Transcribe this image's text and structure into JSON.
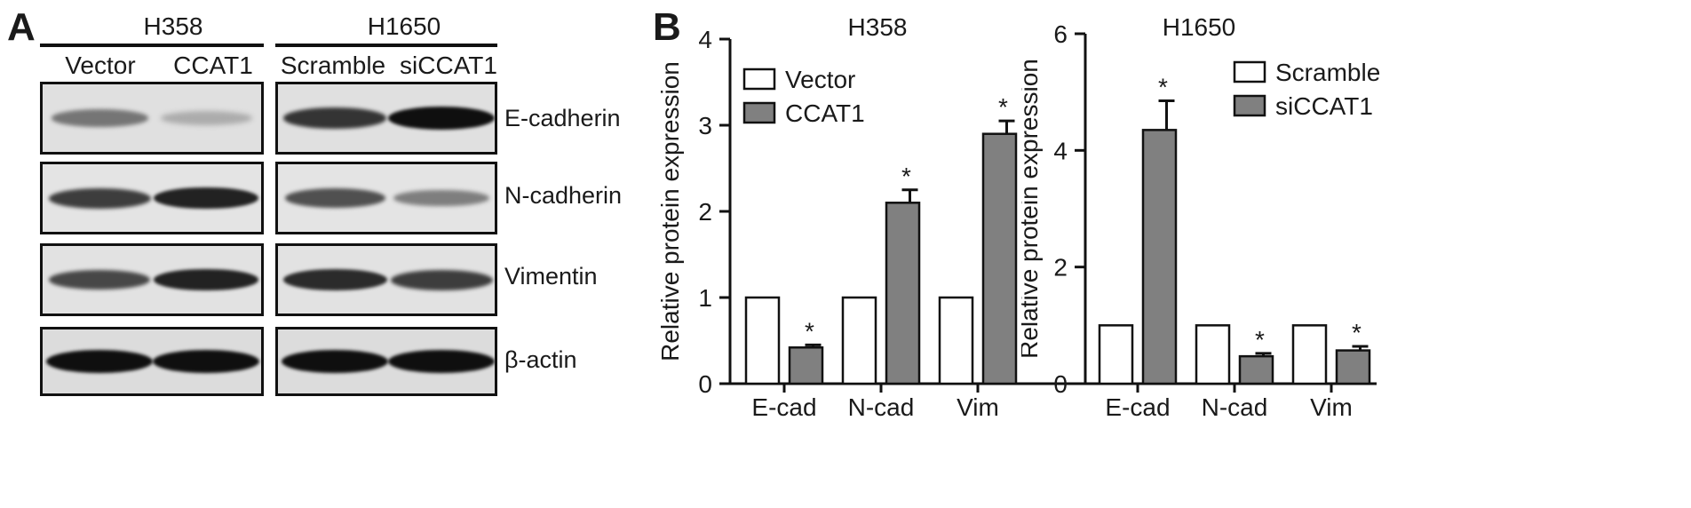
{
  "panel_a": {
    "letter": "A",
    "cell_lines": [
      "H358",
      "H1650"
    ],
    "lanes": [
      [
        "Vector",
        "CCAT1"
      ],
      [
        "Scramble",
        "siCCAT1"
      ]
    ],
    "proteins": [
      "E-cadherin",
      "N-cadherin",
      "Vimentin",
      "β-actin"
    ],
    "band_intensity": [
      [
        [
          0.45,
          0.15
        ],
        [
          0.8,
          1.0
        ]
      ],
      [
        [
          0.75,
          0.9
        ],
        [
          0.65,
          0.4
        ]
      ],
      [
        [
          0.7,
          0.9
        ],
        [
          0.85,
          0.75
        ]
      ],
      [
        [
          1.0,
          1.0
        ],
        [
          1.0,
          1.0
        ]
      ]
    ]
  },
  "panel_b": {
    "letter": "B",
    "colors": {
      "control": "#ffffff",
      "treatment": "#808080",
      "stroke": "#111111"
    }
  },
  "chart_data": [
    {
      "type": "bar",
      "title": "H358",
      "ylabel": "Relative protein expression",
      "categories": [
        "E-cad",
        "N-cad",
        "Vim"
      ],
      "ylim": [
        0,
        4
      ],
      "yticks": [
        0,
        1,
        2,
        3,
        4
      ],
      "series": [
        {
          "name": "Vector",
          "values": [
            1,
            1,
            1
          ],
          "errors": [
            0,
            0,
            0
          ]
        },
        {
          "name": "CCAT1",
          "values": [
            0.42,
            2.1,
            2.9
          ],
          "errors": [
            0.03,
            0.15,
            0.15
          ]
        }
      ],
      "significance": [
        "*",
        "*",
        "*"
      ],
      "legend_position": "top-left"
    },
    {
      "type": "bar",
      "title": "H1650",
      "ylabel": "Relative protein expression",
      "categories": [
        "E-cad",
        "N-cad",
        "Vim"
      ],
      "ylim": [
        0,
        6
      ],
      "yticks": [
        0,
        2,
        4,
        6
      ],
      "series": [
        {
          "name": "Scramble",
          "values": [
            1,
            1,
            1
          ],
          "errors": [
            0,
            0,
            0
          ]
        },
        {
          "name": "siCCAT1",
          "values": [
            4.35,
            0.47,
            0.57
          ],
          "errors": [
            0.5,
            0.05,
            0.07
          ]
        }
      ],
      "significance": [
        "*",
        "*",
        "*"
      ],
      "legend_position": "top-right"
    }
  ]
}
